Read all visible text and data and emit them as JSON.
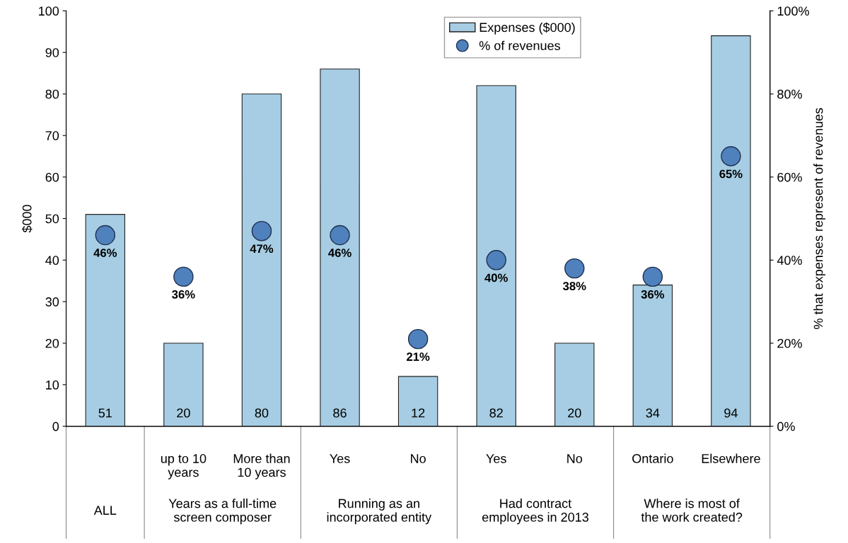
{
  "chart_data": {
    "type": "bar",
    "ylabel": "$000",
    "y2label": "% that expenses represent of revenues",
    "categories": [
      null,
      "up to 10\nyears",
      "More than\n10 years",
      "Yes",
      "No",
      "Yes",
      "No",
      "Ontario",
      "Elsewhere"
    ],
    "series": [
      {
        "name": "Expenses ($000)",
        "color": "#a6cde3",
        "values": [
          51,
          20,
          80,
          86,
          12,
          82,
          20,
          34,
          94
        ]
      },
      {
        "name": "% of revenues",
        "type": "scatter",
        "axis": "y2",
        "color": "#4f81bd",
        "values": [
          46,
          36,
          47,
          46,
          21,
          40,
          38,
          36,
          65
        ],
        "value_labels": [
          "46%",
          "36%",
          "47%",
          "46%",
          "21%",
          "40%",
          "38%",
          "36%",
          "65%"
        ]
      }
    ],
    "data_labels": true,
    "annotations": [
      "ALL",
      "Years as a full-time\nscreen composer",
      "Running as an\nincorporated entity",
      "Had contract\nemployees in 2013",
      "Where is most of\nthe work created?"
    ],
    "ylim": [
      0,
      100
    ],
    "yticks": [
      0,
      10,
      20,
      30,
      40,
      50,
      60,
      70,
      80,
      90,
      100
    ],
    "y2lim": [
      0,
      100
    ],
    "y2ticks": [
      {
        "value": 0,
        "label": "0%"
      },
      {
        "value": 20,
        "label": "20%"
      },
      {
        "value": 40,
        "label": "40%"
      },
      {
        "value": 60,
        "label": "60%"
      },
      {
        "value": 80,
        "label": "80%"
      },
      {
        "value": 100,
        "label": "100%"
      }
    ],
    "marker": "circle",
    "legend": "top right",
    "grid": false
  }
}
